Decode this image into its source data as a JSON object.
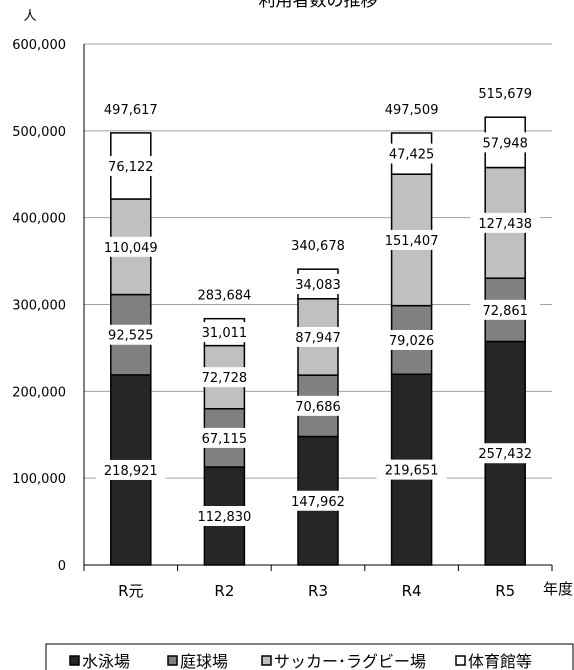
{
  "chart_data": {
    "type": "bar",
    "stacked": true,
    "title": "利用者数の推移",
    "ylabel": "人",
    "xlabel": "年度",
    "ylim": [
      0,
      600000
    ],
    "yticks": [
      "0",
      "100,000",
      "200,000",
      "300,000",
      "400,000",
      "500,000",
      "600,000"
    ],
    "grid": true,
    "legend_position": "bottom",
    "categories": [
      "R元",
      "R2",
      "R3",
      "R4",
      "R5"
    ],
    "series": [
      {
        "name": "水泳場",
        "values": [
          218921,
          112830,
          147962,
          219651,
          257432
        ],
        "labels": [
          "218,921",
          "112,830",
          "147,962",
          "219,651",
          "257,432"
        ],
        "color": "#262626"
      },
      {
        "name": "庭球場",
        "values": [
          92525,
          67115,
          70686,
          79026,
          72861
        ],
        "labels": [
          "92,525",
          "67,115",
          "70,686",
          "79,026",
          "72,861"
        ],
        "color": "#808080"
      },
      {
        "name": "サッカー･ラグビー場",
        "values": [
          110049,
          72728,
          87947,
          151407,
          127438
        ],
        "labels": [
          "110,049",
          "72,728",
          "87,947",
          "151,407",
          "127,438"
        ],
        "color": "#c0c0c0"
      },
      {
        "name": "体育館等",
        "values": [
          76122,
          31011,
          34083,
          47425,
          57948
        ],
        "labels": [
          "76,122",
          "31,011",
          "34,083",
          "47,425",
          "57,948"
        ],
        "color": "#ffffff"
      }
    ],
    "totals": [
      497617,
      283684,
      340678,
      497509,
      515679
    ],
    "total_labels": [
      "497,617",
      "283,684",
      "340,678",
      "497,509",
      "515,679"
    ]
  }
}
